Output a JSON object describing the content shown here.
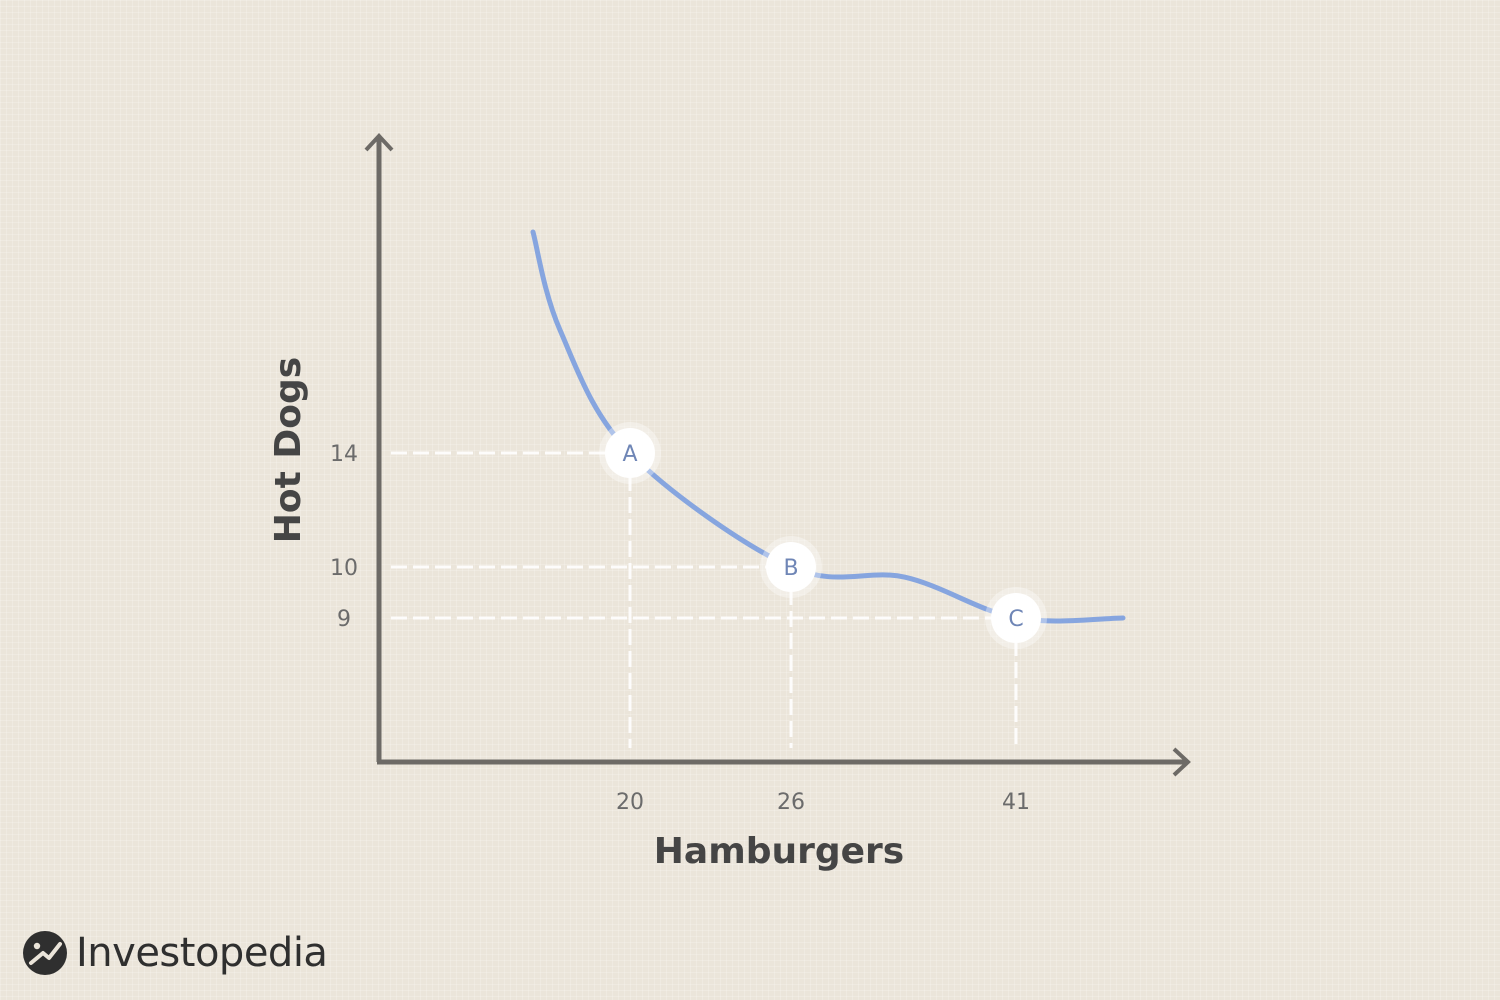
{
  "chart_data": {
    "type": "line",
    "xlabel": "Hamburgers",
    "ylabel": "Hot Dogs",
    "x_ticks": [
      20,
      26,
      41
    ],
    "y_ticks": [
      14,
      10,
      9
    ],
    "points": [
      {
        "label": "A",
        "x": 20,
        "y": 14
      },
      {
        "label": "B",
        "x": 26,
        "y": 10
      },
      {
        "label": "C",
        "x": 41,
        "y": 9
      }
    ],
    "curve": [
      {
        "x": 14.2,
        "y": 22
      },
      {
        "x": 16.5,
        "y": 17.2
      },
      {
        "x": 20,
        "y": 14
      },
      {
        "x": 26,
        "y": 10
      },
      {
        "x": 33,
        "y": 9.8
      },
      {
        "x": 41,
        "y": 9
      },
      {
        "x": 45,
        "y": 9
      }
    ],
    "grid": false,
    "colors": {
      "curve": "#86a5df",
      "axis": "#6d6a66",
      "guide": "#ffffff",
      "point_text": "#6f86b6"
    }
  },
  "brand": {
    "name": "Investopedia"
  }
}
